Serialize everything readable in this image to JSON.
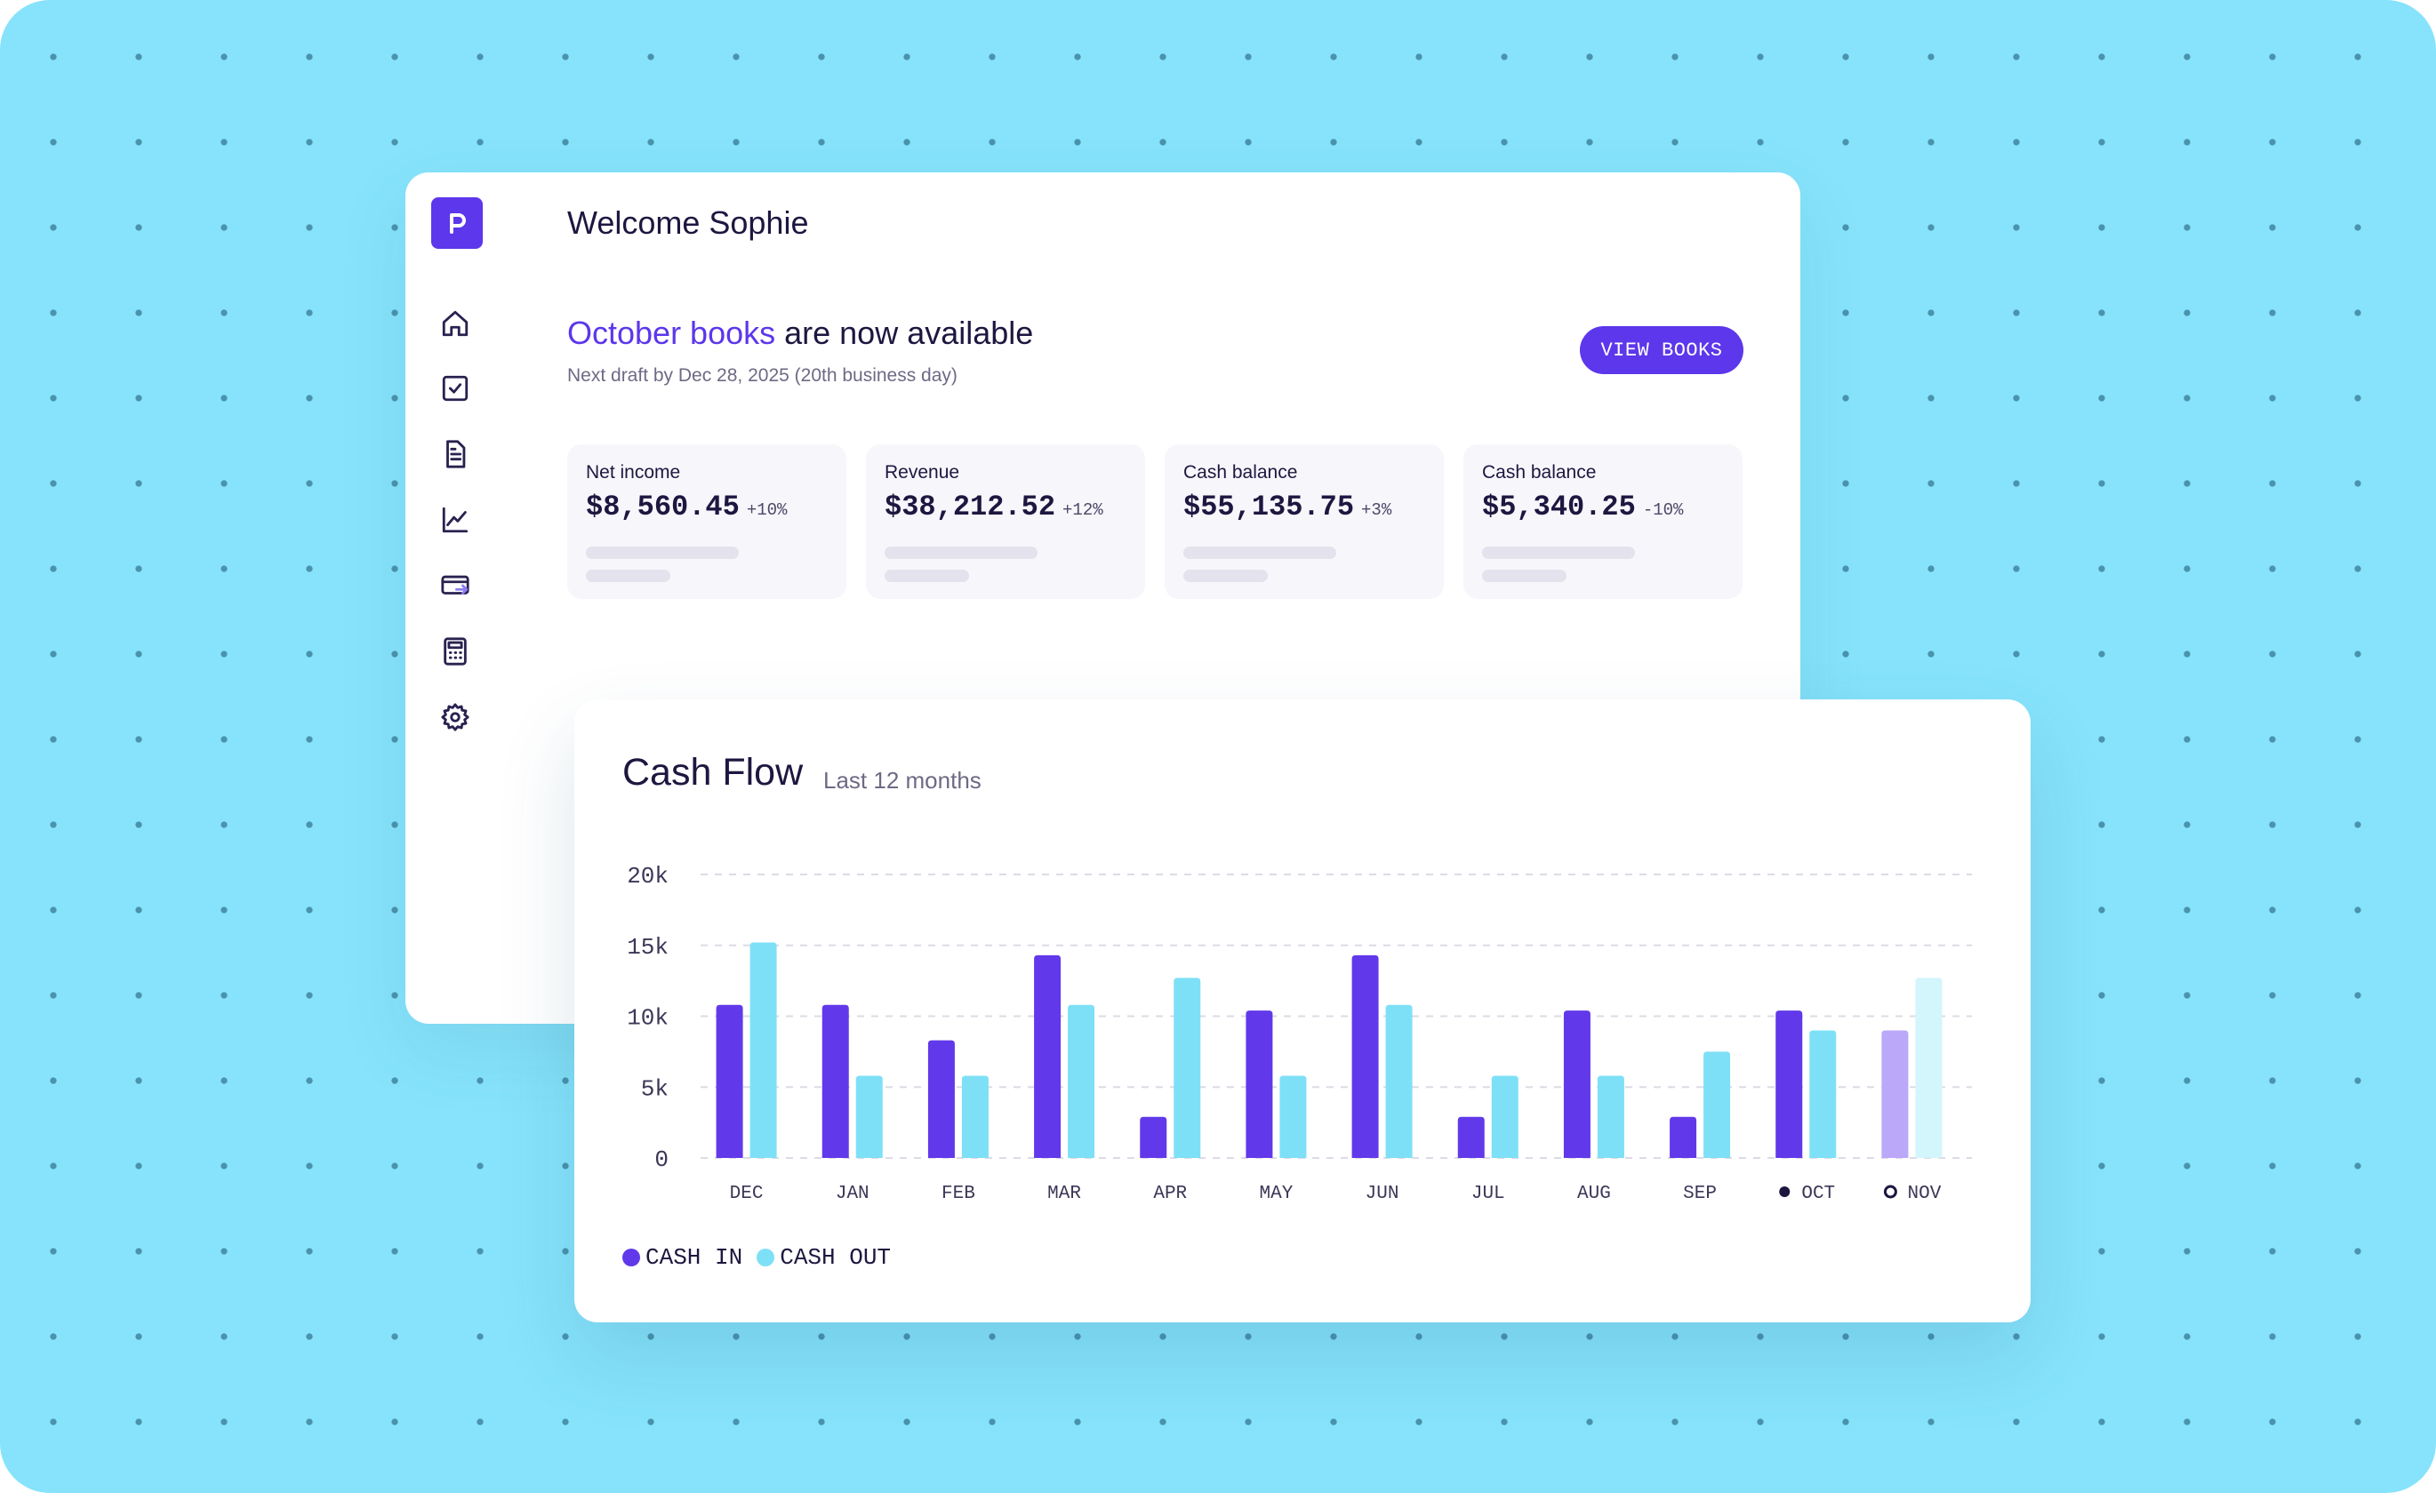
{
  "colors": {
    "accent": "#5c37eb",
    "cash_in": "#6139ea",
    "cash_out": "#7ee0f6",
    "cash_in_projected": "#bba8f8",
    "cash_out_projected": "#d3f5fc",
    "background": "#86e3fb"
  },
  "sidebar": {
    "logo_letter": "p",
    "items": [
      {
        "icon": "home-icon"
      },
      {
        "icon": "checkbox-icon"
      },
      {
        "icon": "document-icon"
      },
      {
        "icon": "chart-line-icon"
      },
      {
        "icon": "card-transfer-icon"
      },
      {
        "icon": "calculator-icon"
      },
      {
        "icon": "gear-icon"
      }
    ]
  },
  "header": {
    "welcome": "Welcome Sophie"
  },
  "banner": {
    "highlight": "October books",
    "rest": " are now available",
    "subline": "Next draft by Dec 28, 2025 (20th business day)",
    "button_label": "VIEW BOOKS"
  },
  "kpis": [
    {
      "label": "Net income",
      "value": "$8,560.45",
      "change": "+10%"
    },
    {
      "label": "Revenue",
      "value": "$38,212.52",
      "change": "+12%"
    },
    {
      "label": "Cash balance",
      "value": "$55,135.75",
      "change": "+3%"
    },
    {
      "label": "Cash balance",
      "value": "$5,340.25",
      "change": "-10%"
    }
  ],
  "chart_data": {
    "type": "bar",
    "title": "Cash Flow",
    "subtitle": "Last 12 months",
    "categories": [
      "DEC",
      "JAN",
      "FEB",
      "MAR",
      "APR",
      "MAY",
      "JUN",
      "JUL",
      "AUG",
      "SEP",
      "OCT",
      "NOV"
    ],
    "category_markers": {
      "OCT": "filled-dot",
      "NOV": "hollow-dot"
    },
    "series": [
      {
        "name": "CASH IN",
        "values": [
          10800,
          10800,
          8300,
          14300,
          2900,
          10400,
          14300,
          2900,
          10400,
          2900,
          10400,
          9000
        ]
      },
      {
        "name": "CASH OUT",
        "values": [
          15200,
          5800,
          5800,
          10800,
          12700,
          5800,
          10800,
          5800,
          5800,
          7500,
          9000,
          12700
        ]
      }
    ],
    "yticks": [
      "20k",
      "15k",
      "10k",
      "5k",
      "0"
    ],
    "ylim": [
      0,
      20000
    ],
    "grid": true,
    "legend": "bottom-left"
  }
}
